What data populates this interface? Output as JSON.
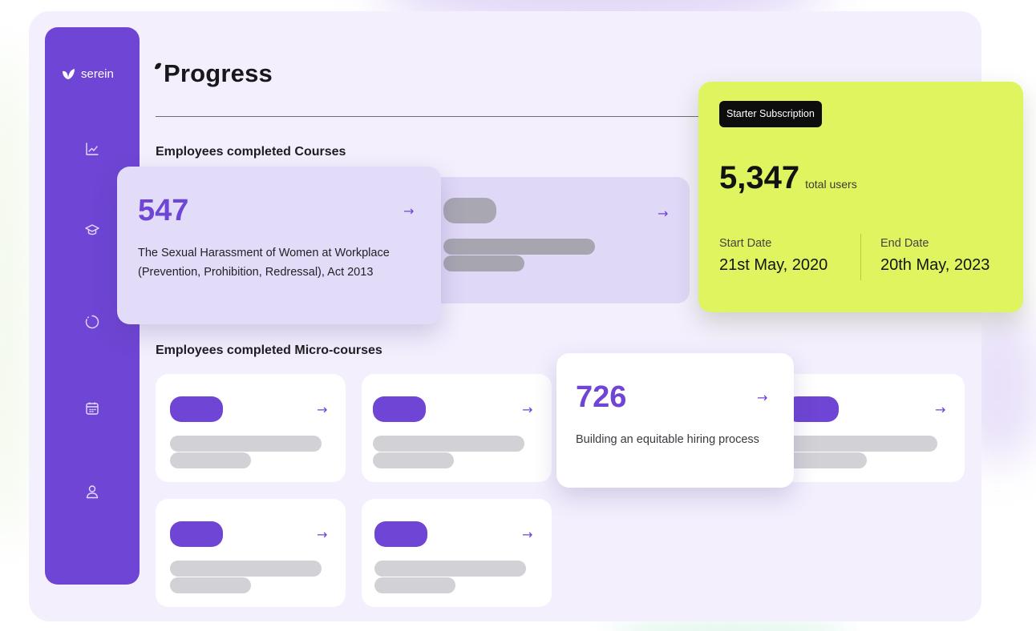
{
  "brand": {
    "name": "serein"
  },
  "page": {
    "title": "Progress"
  },
  "sidebar": {
    "icons": [
      "chart-line-icon",
      "graduation-cap-icon",
      "circle-progress-icon",
      "calendar-icon",
      "user-icon"
    ]
  },
  "sections": {
    "courses_title": "Employees completed Courses",
    "micro_courses_title": "Employees completed Micro-courses"
  },
  "featured_course": {
    "count": "547",
    "name": "The Sexual Harassment of Women at Workplace (Prevention, Prohibition, Redressal), Act 2013"
  },
  "featured_micro_course": {
    "count": "726",
    "name": "Building an equitable hiring process"
  },
  "arrow_glyph": "→",
  "subscription": {
    "badge": "Starter Subscription",
    "total_users": "5,347",
    "total_users_label": "total users",
    "start_label": "Start Date",
    "start_value": "21st May, 2020",
    "end_label": "End Date",
    "end_value": "20th May, 2023"
  },
  "colors": {
    "accent": "#6e45d4",
    "lime": "#e0f45f",
    "background": "#f3effd"
  }
}
